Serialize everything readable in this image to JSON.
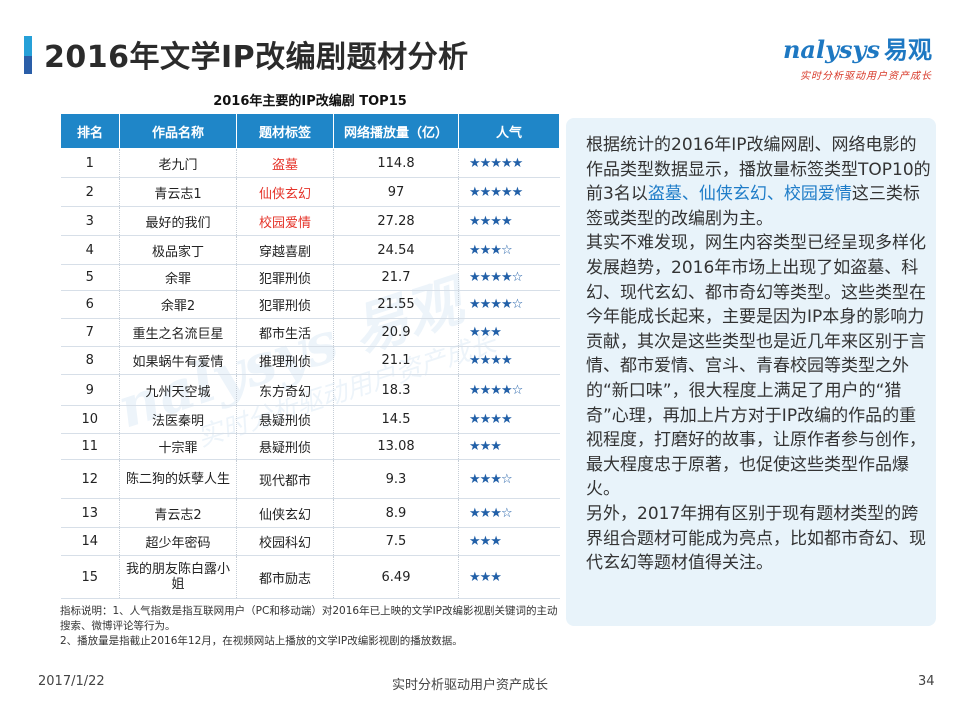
{
  "slide": {
    "title": "2016年文学IP改编剧题材分析",
    "page_number": "34",
    "date": "2017/1/22",
    "footer_slogan": "实时分析驱动用户资产成长"
  },
  "logo": {
    "name": "nalysys",
    "name_cn": "易观",
    "tagline": "实时分析驱动用户资产成长",
    "watermark_name": "nalysys 易观",
    "watermark_tagline": "实时分析驱动用户资产成长"
  },
  "table": {
    "title": "2016年主要的IP改编剧 TOP15",
    "headers": [
      "排名",
      "作品名称",
      "题材标签",
      "网络播放量（亿）",
      "人气"
    ],
    "rows": [
      {
        "rank": "1",
        "name": "老九门",
        "tag": "盗墓",
        "plays": "114.8",
        "stars": "★★★★★",
        "tag_highlight": true
      },
      {
        "rank": "2",
        "name": "青云志1",
        "tag": "仙侠玄幻",
        "plays": "97",
        "stars": "★★★★★",
        "tag_highlight": true
      },
      {
        "rank": "3",
        "name": "最好的我们",
        "tag": "校园爱情",
        "plays": "27.28",
        "stars": "★★★★",
        "tag_highlight": true
      },
      {
        "rank": "4",
        "name": "极品家丁",
        "tag": "穿越喜剧",
        "plays": "24.54",
        "stars": "★★★☆",
        "tag_highlight": false
      },
      {
        "rank": "5",
        "name": "余罪",
        "tag": "犯罪刑侦",
        "plays": "21.7",
        "stars": "★★★★☆",
        "tag_highlight": false
      },
      {
        "rank": "6",
        "name": "余罪2",
        "tag": "犯罪刑侦",
        "plays": "21.55",
        "stars": "★★★★☆",
        "tag_highlight": false
      },
      {
        "rank": "7",
        "name": "重生之名流巨星",
        "tag": "都市生活",
        "plays": "20.9",
        "stars": "★★★",
        "tag_highlight": false
      },
      {
        "rank": "8",
        "name": "如果蜗牛有爱情",
        "tag": "推理刑侦",
        "plays": "21.1",
        "stars": "★★★★",
        "tag_highlight": false
      },
      {
        "rank": "9",
        "name": "九州天空城",
        "tag": "东方奇幻",
        "plays": "18.3",
        "stars": "★★★★☆",
        "tag_highlight": false
      },
      {
        "rank": "10",
        "name": "法医秦明",
        "tag": "悬疑刑侦",
        "plays": "14.5",
        "stars": "★★★★",
        "tag_highlight": false
      },
      {
        "rank": "11",
        "name": "十宗罪",
        "tag": "悬疑刑侦",
        "plays": "13.08",
        "stars": "★★★",
        "tag_highlight": false
      },
      {
        "rank": "12",
        "name": "陈二狗的妖孽人生",
        "tag": "现代都市",
        "plays": "9.3",
        "stars": "★★★☆",
        "tag_highlight": false
      },
      {
        "rank": "13",
        "name": "青云志2",
        "tag": "仙侠玄幻",
        "plays": "8.9",
        "stars": "★★★☆",
        "tag_highlight": false
      },
      {
        "rank": "14",
        "name": "超少年密码",
        "tag": "校园科幻",
        "plays": "7.5",
        "stars": "★★★",
        "tag_highlight": false
      },
      {
        "rank": "15",
        "name": "我的朋友陈白露小姐",
        "tag": "都市励志",
        "plays": "6.49",
        "stars": "★★★",
        "tag_highlight": false
      }
    ]
  },
  "notes": {
    "line1": "指标说明：1、人气指数是指互联网用户（PC和移动端）对2016年已上映的文学IP改编影视剧关键词的主动搜索、微博评论等行为。",
    "line2": "2、播放量是指截止2016年12月，在视频网站上播放的文学IP改编影视剧的播放数据。"
  },
  "analysis": {
    "p1_a": "根据统计的2016年IP改编网剧、网络电影的作品类型数据显示，播放量标签类型TOP10的前3名以",
    "p1_hl": "盗墓、仙侠玄幻、校园爱情",
    "p1_b": "这三类标签或类型的改编剧为主。",
    "p2": "其实不难发现，网生内容类型已经呈现多样化发展趋势，2016年市场上出现了如盗墓、科幻、现代玄幻、都市奇幻等类型。这些类型在今年能成长起来，主要是因为IP本身的影响力贡献，其次是这些类型也是近几年来区别于言情、都市爱情、宫斗、青春校园等类型之外的“新口味”，很大程度上满足了用户的“猎奇”心理，再加上片方对于IP改编的作品的重视程度，打磨好的故事，让原作者参与创作，最大程度忠于原著，也促使这些类型作品爆火。",
    "p3": "另外，2017年拥有区别于现有题材类型的跨界组合题材可能成为亮点，比如都市奇幻、现代玄幻等题材值得关注。"
  },
  "colors": {
    "accent_blue": "#1f86c8",
    "highlight_red": "#e5342a",
    "panel_bg": "#e8f3fa"
  }
}
